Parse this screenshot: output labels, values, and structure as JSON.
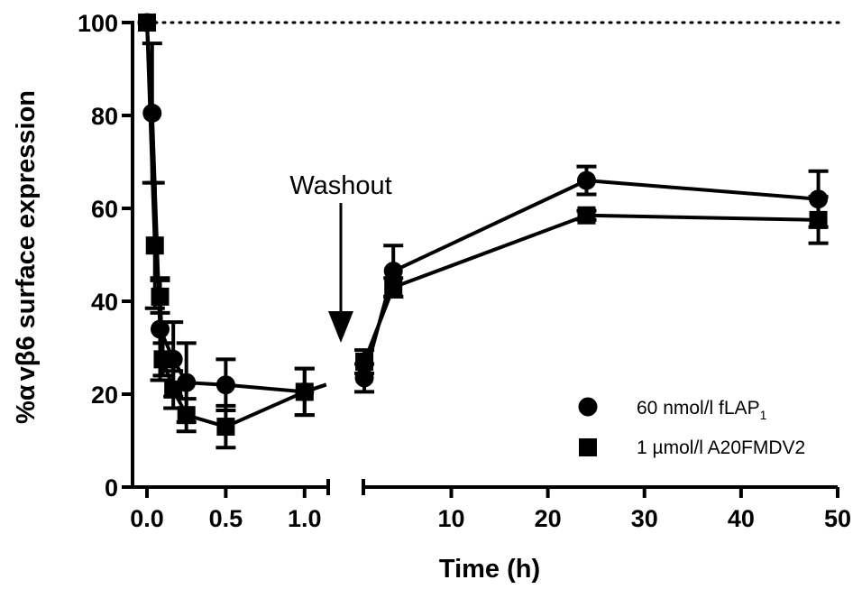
{
  "chart_data": {
    "type": "line",
    "xlabel": "Time (h)",
    "ylabel_parts": {
      "prefix": "%",
      "alpha": "α",
      "v": "v",
      "beta": "β",
      "suffix": "6 surface expression"
    },
    "ylim": [
      0,
      100
    ],
    "yticks": [
      "0",
      "20",
      "40",
      "60",
      "80",
      "100"
    ],
    "reference_line": {
      "y": 100,
      "style": "dotted"
    },
    "x_segments": [
      {
        "xlim": [
          0.0,
          1.15
        ],
        "ticks": [
          {
            "v": 0.0,
            "label": "0.0"
          },
          {
            "v": 0.5,
            "label": "0.5"
          },
          {
            "v": 1.0,
            "label": "1.0"
          }
        ]
      },
      {
        "xlim": [
          0.9,
          50
        ],
        "ticks": [
          {
            "v": 10,
            "label": "10"
          },
          {
            "v": 20,
            "label": "20"
          },
          {
            "v": 30,
            "label": "30"
          },
          {
            "v": 40,
            "label": "40"
          },
          {
            "v": 50,
            "label": "50"
          }
        ]
      }
    ],
    "annotation": {
      "text": "Washout",
      "arrow": "down"
    },
    "series": [
      {
        "name": "60 nmol/l fLAP",
        "name_sub": "1",
        "marker": "circle",
        "points": [
          {
            "x": 0.0,
            "y": 100,
            "err": 0
          },
          {
            "x": 0.033,
            "y": 80.5,
            "err": 15
          },
          {
            "x": 0.083,
            "y": 34,
            "err": 11
          },
          {
            "x": 0.167,
            "y": 27.5,
            "err": 8
          },
          {
            "x": 0.25,
            "y": 22.5,
            "err": 8.5
          },
          {
            "x": 0.5,
            "y": 22,
            "err": 5.5
          },
          {
            "x": 1.0,
            "y": 20.5,
            "err": 5
          }
        ],
        "points_after": [
          {
            "x": 1,
            "y": 23.5,
            "err": 3
          },
          {
            "x": 4,
            "y": 46.5,
            "err": 5.5
          },
          {
            "x": 24,
            "y": 66,
            "err": 3
          },
          {
            "x": 48,
            "y": 62,
            "err": 6
          }
        ]
      },
      {
        "name": "1 µmol/l A20FMDV2",
        "marker": "square",
        "points": [
          {
            "x": 0.0,
            "y": 100,
            "err": 0
          },
          {
            "x": 0.05,
            "y": 52,
            "err": 13.5
          },
          {
            "x": 0.083,
            "y": 41,
            "err": 3.5
          },
          {
            "x": 0.1,
            "y": 27.5,
            "err": 3.5
          },
          {
            "x": 0.167,
            "y": 21,
            "err": 4
          },
          {
            "x": 0.25,
            "y": 15.5,
            "err": 3.5
          },
          {
            "x": 0.5,
            "y": 13,
            "err": 4.5
          },
          {
            "x": 1.0,
            "y": 20.5,
            "err": 5
          }
        ],
        "points_after": [
          {
            "x": 1,
            "y": 27,
            "err": 2.5
          },
          {
            "x": 4,
            "y": 43,
            "err": 2
          },
          {
            "x": 24,
            "y": 58.5,
            "err": 1
          },
          {
            "x": 48,
            "y": 57.5,
            "err": 5
          }
        ]
      }
    ]
  }
}
